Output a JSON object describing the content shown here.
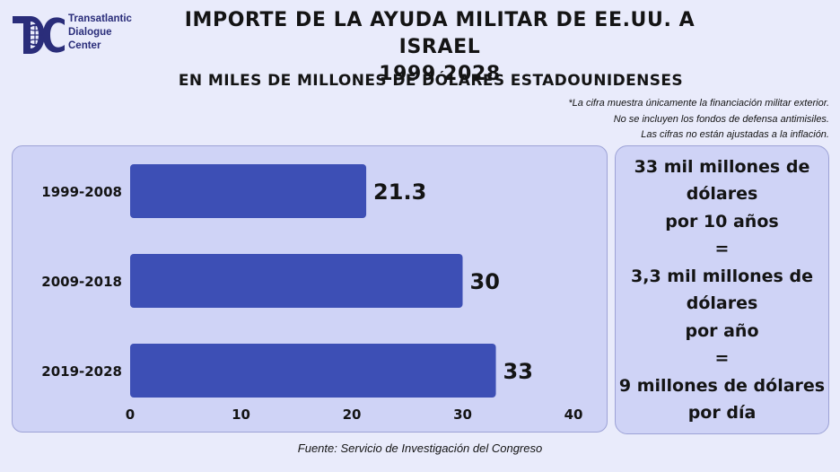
{
  "logo": {
    "lines": [
      "Transatlantic",
      "Dialogue",
      "Center"
    ]
  },
  "header": {
    "title_line1": "IMPORTE DE LA AYUDA MILITAR DE EE.UU. A ISRAEL",
    "title_line2": "1999 2028",
    "subtitle": "EN MILES DE MILLONES DE DÓLARES ESTADOUNIDENSES"
  },
  "notes": [
    "*La cifra muestra únicamente la financiación militar exterior.",
    "No se incluyen los fondos de defensa antimisiles.",
    "Las cifras no están ajustadas a la inflación."
  ],
  "side_panel": {
    "lines": [
      "33 mil millones de",
      "dólares",
      "por 10 años",
      "=",
      "3,3 mil millones de",
      "dólares",
      "por año",
      "=",
      "9 millones de dólares",
      "por día"
    ]
  },
  "source": "Fuente: Servicio de Investigación del Congreso",
  "colors": {
    "bar": "#3d4fb5",
    "panel": "#cfd3f6",
    "background": "#e9ebfb",
    "logo": "#2a2d7a"
  },
  "chart_data": {
    "type": "bar",
    "orientation": "horizontal",
    "categories": [
      "1999-2008",
      "2009-2018",
      "2019-2028"
    ],
    "values": [
      21.3,
      30,
      33
    ],
    "value_labels": [
      "21.3",
      "30",
      "33"
    ],
    "xlim": [
      0,
      40
    ],
    "xticks": [
      0,
      10,
      20,
      30,
      40
    ],
    "grid": false
  }
}
